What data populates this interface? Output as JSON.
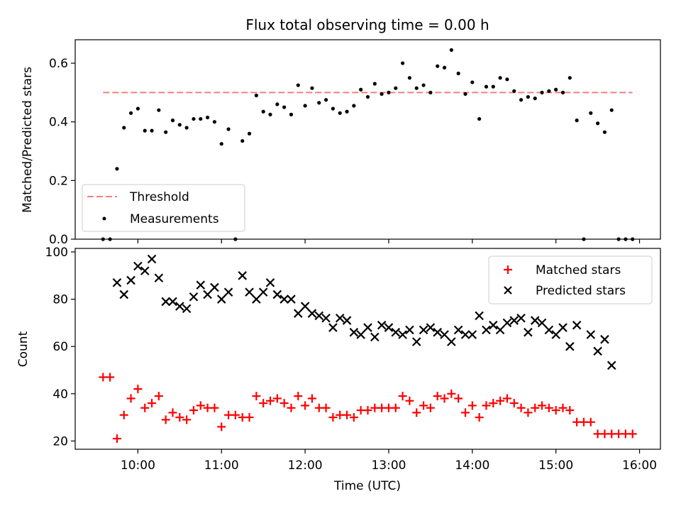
{
  "title": "Flux total observing time = 0.00 h",
  "chart_data": [
    {
      "type": "scatter",
      "ylabel": "Matched/Predicted stars",
      "ylim": [
        0.0,
        0.68
      ],
      "yticks": [
        "0.0",
        "0.2",
        "0.4",
        "0.6"
      ],
      "legend_position": "lower-left",
      "threshold": {
        "name": "Threshold",
        "value": 0.5,
        "x_start": "09:35",
        "x_end": "15:55",
        "color": "#f08080"
      },
      "series": [
        {
          "name": "Measurements",
          "color": "#000000",
          "x": [
            "09:35",
            "09:40",
            "09:45",
            "09:50",
            "09:55",
            "10:00",
            "10:05",
            "10:10",
            "10:15",
            "10:20",
            "10:25",
            "10:30",
            "10:35",
            "10:40",
            "10:45",
            "10:50",
            "10:55",
            "11:00",
            "11:05",
            "11:10",
            "11:15",
            "11:20",
            "11:25",
            "11:30",
            "11:35",
            "11:40",
            "11:45",
            "11:50",
            "11:55",
            "12:00",
            "12:05",
            "12:10",
            "12:15",
            "12:20",
            "12:25",
            "12:30",
            "12:35",
            "12:40",
            "12:45",
            "12:50",
            "12:55",
            "13:00",
            "13:05",
            "13:10",
            "13:15",
            "13:20",
            "13:25",
            "13:30",
            "13:35",
            "13:40",
            "13:45",
            "13:50",
            "13:55",
            "14:00",
            "14:05",
            "14:10",
            "14:15",
            "14:20",
            "14:25",
            "14:30",
            "14:35",
            "14:40",
            "14:45",
            "14:50",
            "14:55",
            "15:00",
            "15:05",
            "15:10",
            "15:15",
            "15:20",
            "15:25",
            "15:30",
            "15:35",
            "15:40",
            "15:45",
            "15:50",
            "15:55"
          ],
          "y": [
            0.0,
            0.0,
            0.24,
            0.38,
            0.43,
            0.445,
            0.37,
            0.37,
            0.44,
            0.365,
            0.405,
            0.39,
            0.38,
            0.41,
            0.41,
            0.415,
            0.4,
            0.325,
            0.375,
            0.0,
            0.335,
            0.36,
            0.49,
            0.435,
            0.425,
            0.46,
            0.45,
            0.425,
            0.525,
            0.455,
            0.515,
            0.465,
            0.475,
            0.445,
            0.43,
            0.435,
            0.455,
            0.51,
            0.485,
            0.53,
            0.495,
            0.5,
            0.515,
            0.6,
            0.55,
            0.515,
            0.525,
            0.5,
            0.59,
            0.585,
            0.645,
            0.565,
            0.495,
            0.535,
            0.41,
            0.52,
            0.52,
            0.55,
            0.545,
            0.505,
            0.475,
            0.485,
            0.48,
            0.5,
            0.505,
            0.51,
            0.5,
            0.55,
            0.405,
            0.0,
            0.43,
            0.395,
            0.365,
            0.44,
            0.0,
            0.0,
            0.0
          ]
        }
      ]
    },
    {
      "type": "scatter",
      "ylabel": "Count",
      "xlabel": "Time (UTC)",
      "ylim": [
        16.5,
        101.5
      ],
      "yticks": [
        "20",
        "40",
        "60",
        "80",
        "100"
      ],
      "xlim": [
        "09:15",
        "16:15"
      ],
      "xticks": [
        "10:00",
        "11:00",
        "12:00",
        "13:00",
        "14:00",
        "15:00",
        "16:00"
      ],
      "legend_position": "upper-right",
      "series": [
        {
          "name": "Matched stars",
          "marker": "plus",
          "color": "#ff0000",
          "x": [
            "09:35",
            "09:40",
            "09:45",
            "09:50",
            "09:55",
            "10:00",
            "10:05",
            "10:10",
            "10:15",
            "10:20",
            "10:25",
            "10:30",
            "10:35",
            "10:40",
            "10:45",
            "10:50",
            "10:55",
            "11:00",
            "11:05",
            "11:10",
            "11:15",
            "11:20",
            "11:25",
            "11:30",
            "11:35",
            "11:40",
            "11:45",
            "11:50",
            "11:55",
            "12:00",
            "12:05",
            "12:10",
            "12:15",
            "12:20",
            "12:25",
            "12:30",
            "12:35",
            "12:40",
            "12:45",
            "12:50",
            "12:55",
            "13:00",
            "13:05",
            "13:10",
            "13:15",
            "13:20",
            "13:25",
            "13:30",
            "13:35",
            "13:40",
            "13:45",
            "13:50",
            "13:55",
            "14:00",
            "14:05",
            "14:10",
            "14:15",
            "14:20",
            "14:25",
            "14:30",
            "14:35",
            "14:40",
            "14:45",
            "14:50",
            "14:55",
            "15:00",
            "15:05",
            "15:10",
            "15:15",
            "15:20",
            "15:25",
            "15:30",
            "15:35",
            "15:40",
            "15:45",
            "15:50",
            "15:55"
          ],
          "y": [
            47,
            47,
            21,
            31,
            38,
            42,
            34,
            36,
            39,
            29,
            32,
            30,
            29,
            33,
            35,
            34,
            34,
            26,
            31,
            31,
            30,
            30,
            39,
            36,
            37,
            38,
            36,
            34,
            39,
            35,
            38,
            34,
            34,
            30,
            31,
            31,
            30,
            33,
            33,
            34,
            34,
            34,
            34,
            39,
            37,
            32,
            35,
            34,
            39,
            38,
            40,
            38,
            32,
            35,
            30,
            35,
            36,
            37,
            38,
            36,
            34,
            32,
            34,
            35,
            34,
            33,
            34,
            33,
            28,
            28,
            28,
            23,
            23,
            23,
            23,
            23,
            23
          ]
        },
        {
          "name": "Predicted stars",
          "marker": "x",
          "color": "#000000",
          "x": [
            "09:45",
            "09:50",
            "09:55",
            "10:00",
            "10:05",
            "10:10",
            "10:15",
            "10:20",
            "10:25",
            "10:30",
            "10:35",
            "10:40",
            "10:45",
            "10:50",
            "10:55",
            "11:00",
            "11:05",
            "11:15",
            "11:20",
            "11:25",
            "11:30",
            "11:35",
            "11:40",
            "11:45",
            "11:50",
            "11:55",
            "12:00",
            "12:05",
            "12:10",
            "12:15",
            "12:20",
            "12:25",
            "12:30",
            "12:35",
            "12:40",
            "12:45",
            "12:50",
            "12:55",
            "13:00",
            "13:05",
            "13:10",
            "13:15",
            "13:20",
            "13:25",
            "13:30",
            "13:35",
            "13:40",
            "13:45",
            "13:50",
            "13:55",
            "14:00",
            "14:05",
            "14:10",
            "14:15",
            "14:20",
            "14:25",
            "14:30",
            "14:35",
            "14:40",
            "14:45",
            "14:50",
            "14:55",
            "15:00",
            "15:05",
            "15:10",
            "15:15",
            "15:25",
            "15:30",
            "15:35",
            "15:40"
          ],
          "y": [
            87,
            82,
            88,
            94,
            92,
            97,
            89,
            79,
            79,
            77,
            76,
            81,
            86,
            82,
            85,
            80,
            83,
            90,
            83,
            80,
            83,
            87,
            82,
            80,
            80,
            74,
            77,
            74,
            73,
            72,
            68,
            72,
            71,
            66,
            65,
            68,
            64,
            69,
            68,
            66,
            65,
            67,
            62,
            67,
            68,
            66,
            65,
            62,
            67,
            65,
            65,
            73,
            67,
            69,
            67,
            70,
            71,
            72,
            66,
            71,
            70,
            67,
            65,
            68,
            60,
            69,
            65,
            58,
            63,
            52
          ]
        }
      ]
    }
  ]
}
